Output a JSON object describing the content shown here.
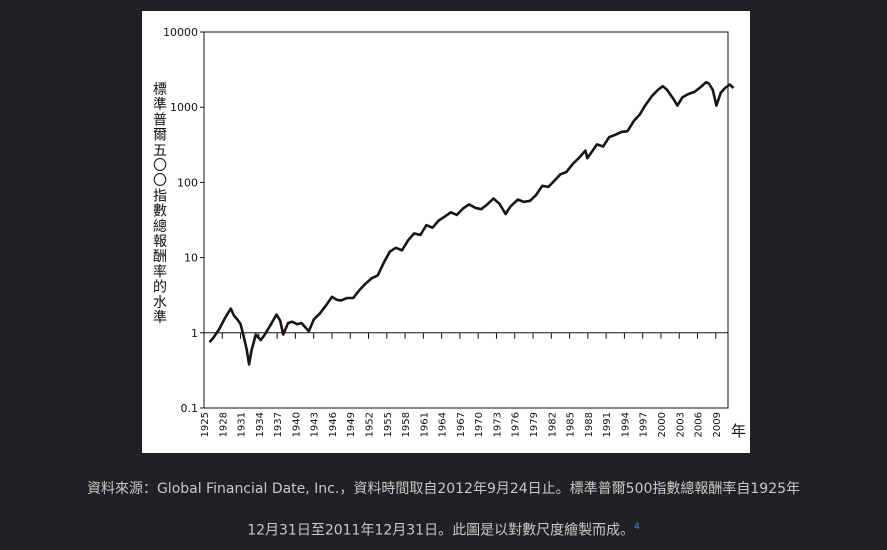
{
  "chart_data": {
    "type": "line",
    "y_scale": "log",
    "ylim": [
      0.1,
      10000
    ],
    "y_ticks": [
      "10000",
      "1000",
      "100",
      "10",
      "1",
      "0.1"
    ],
    "y_tick_values": [
      10000,
      1000,
      100,
      10,
      1,
      0.1
    ],
    "xlim": [
      1925,
      2011
    ],
    "x_ticks": [
      "1925",
      "1928",
      "1931",
      "1934",
      "1937",
      "1940",
      "1943",
      "1946",
      "1949",
      "1952",
      "1955",
      "1958",
      "1961",
      "1964",
      "1967",
      "1970",
      "1973",
      "1976",
      "1979",
      "1982",
      "1985",
      "1988",
      "1991",
      "1994",
      "1997",
      "2000",
      "2003",
      "2006",
      "2009"
    ],
    "xlabel": "年",
    "ylabel": "標準普爾五〇〇指數總報酬率的水準",
    "grid": false,
    "series": [
      {
        "color": "#1a1414",
        "points": [
          [
            1925.9,
            0.75
          ],
          [
            1926.5,
            0.85
          ],
          [
            1927.5,
            1.12
          ],
          [
            1928.5,
            1.6
          ],
          [
            1929.4,
            2.1
          ],
          [
            1929.9,
            1.7
          ],
          [
            1930.5,
            1.5
          ],
          [
            1931.0,
            1.3
          ],
          [
            1931.5,
            0.9
          ],
          [
            1932.0,
            0.6
          ],
          [
            1932.4,
            0.38
          ],
          [
            1932.8,
            0.58
          ],
          [
            1933.5,
            0.95
          ],
          [
            1934.3,
            0.8
          ],
          [
            1935.0,
            0.95
          ],
          [
            1936.0,
            1.3
          ],
          [
            1936.9,
            1.75
          ],
          [
            1937.5,
            1.45
          ],
          [
            1938.0,
            0.95
          ],
          [
            1938.8,
            1.35
          ],
          [
            1939.5,
            1.4
          ],
          [
            1940.3,
            1.3
          ],
          [
            1941.0,
            1.35
          ],
          [
            1942.2,
            1.05
          ],
          [
            1943.0,
            1.5
          ],
          [
            1944.0,
            1.8
          ],
          [
            1945.0,
            2.3
          ],
          [
            1946.0,
            3.0
          ],
          [
            1946.8,
            2.75
          ],
          [
            1947.5,
            2.7
          ],
          [
            1948.5,
            2.9
          ],
          [
            1949.5,
            2.9
          ],
          [
            1950.5,
            3.7
          ],
          [
            1951.5,
            4.5
          ],
          [
            1952.5,
            5.3
          ],
          [
            1953.5,
            5.8
          ],
          [
            1954.5,
            8.5
          ],
          [
            1955.5,
            12.0
          ],
          [
            1956.5,
            13.5
          ],
          [
            1957.5,
            12.5
          ],
          [
            1958.5,
            17.0
          ],
          [
            1959.5,
            21.0
          ],
          [
            1960.5,
            20.0
          ],
          [
            1961.5,
            27.0
          ],
          [
            1962.5,
            25.0
          ],
          [
            1963.5,
            31.0
          ],
          [
            1964.5,
            35.0
          ],
          [
            1965.5,
            40.0
          ],
          [
            1966.5,
            37.0
          ],
          [
            1967.5,
            45.0
          ],
          [
            1968.5,
            51.0
          ],
          [
            1969.5,
            46.0
          ],
          [
            1970.5,
            44.0
          ],
          [
            1971.5,
            51.0
          ],
          [
            1972.5,
            61.0
          ],
          [
            1973.5,
            52.0
          ],
          [
            1974.5,
            38.0
          ],
          [
            1975.3,
            48.0
          ],
          [
            1976.5,
            59.0
          ],
          [
            1977.5,
            55.0
          ],
          [
            1978.5,
            57.0
          ],
          [
            1979.5,
            68.0
          ],
          [
            1980.5,
            90.0
          ],
          [
            1981.5,
            87.0
          ],
          [
            1982.5,
            105.0
          ],
          [
            1983.5,
            128.0
          ],
          [
            1984.5,
            138.0
          ],
          [
            1985.5,
            175.0
          ],
          [
            1986.5,
            210.0
          ],
          [
            1987.6,
            265.0
          ],
          [
            1987.9,
            210.0
          ],
          [
            1988.5,
            245.0
          ],
          [
            1989.5,
            320.0
          ],
          [
            1990.5,
            300.0
          ],
          [
            1991.5,
            400.0
          ],
          [
            1992.5,
            430.0
          ],
          [
            1993.5,
            470.0
          ],
          [
            1994.5,
            480.0
          ],
          [
            1995.5,
            650.0
          ],
          [
            1996.5,
            800.0
          ],
          [
            1997.5,
            1080.0
          ],
          [
            1998.5,
            1400.0
          ],
          [
            1999.5,
            1700.0
          ],
          [
            2000.3,
            1900.0
          ],
          [
            2001.0,
            1700.0
          ],
          [
            2002.0,
            1300.0
          ],
          [
            2002.7,
            1050.0
          ],
          [
            2003.5,
            1350.0
          ],
          [
            2004.5,
            1500.0
          ],
          [
            2005.5,
            1600.0
          ],
          [
            2006.5,
            1850.0
          ],
          [
            2007.4,
            2150.0
          ],
          [
            2007.9,
            2050.0
          ],
          [
            2008.5,
            1700.0
          ],
          [
            2009.1,
            1050.0
          ],
          [
            2009.8,
            1550.0
          ],
          [
            2010.5,
            1800.0
          ],
          [
            2011.3,
            2000.0
          ],
          [
            2011.9,
            1800.0
          ]
        ]
      }
    ]
  },
  "caption": {
    "line1": "資料來源：Global Financial Date, Inc.，資料時間取自2012年9月24日止。標準普爾500指數總報酬率自1925年",
    "line2": "12月31日至2011年12月31日。此圖是以對數尺度繪製而成。",
    "footnote": "4"
  }
}
